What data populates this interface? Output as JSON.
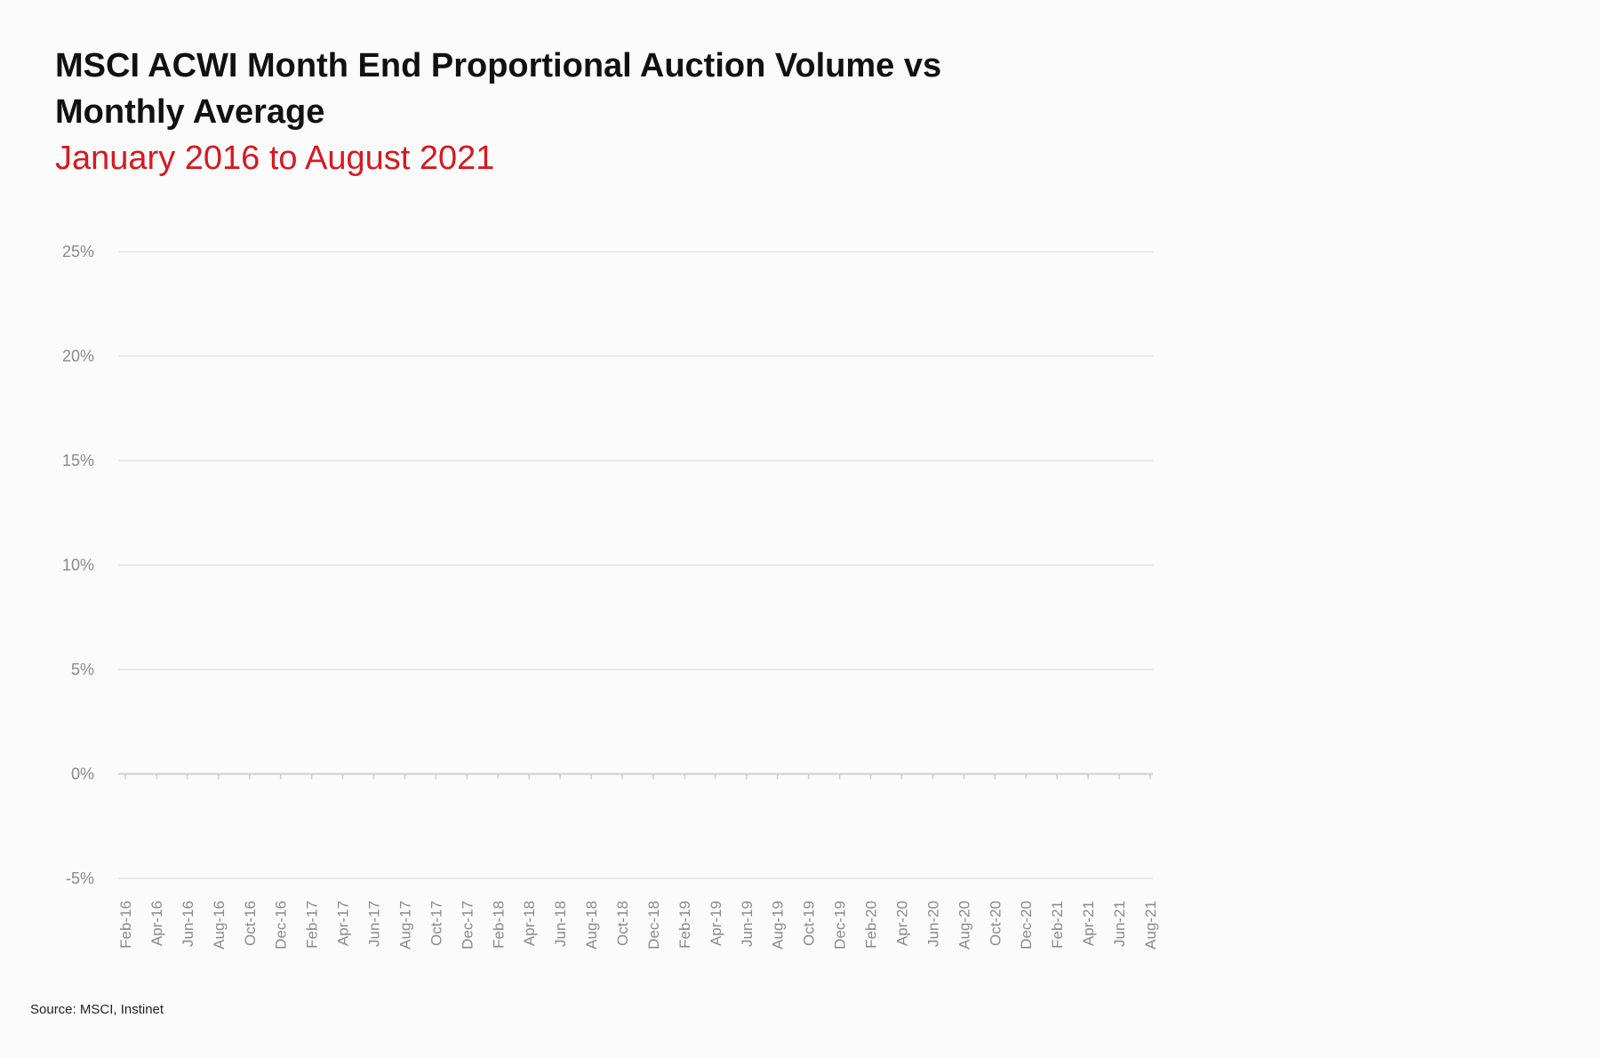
{
  "chart_data": {
    "type": "line",
    "title": "MSCI ACWI Month End Proportional Auction Volume vs Monthly Average",
    "subtitle": "January 2016 to August 2021",
    "subtitle_color": "#d71920",
    "x_tick_labels": [
      "Feb-16",
      "Apr-16",
      "Jun-16",
      "Aug-16",
      "Oct-16",
      "Dec-16",
      "Feb-17",
      "Apr-17",
      "Jun-17",
      "Aug-17",
      "Oct-17",
      "Dec-17",
      "Feb-18",
      "Apr-18",
      "Jun-18",
      "Aug-18",
      "Oct-18",
      "Dec-18",
      "Feb-19",
      "Apr-19",
      "Jun-19",
      "Aug-19",
      "Oct-19",
      "Dec-19",
      "Feb-20",
      "Apr-20",
      "Jun-20",
      "Aug-20",
      "Oct-20",
      "Dec-20",
      "Feb-21",
      "Apr-21",
      "Jun-21",
      "Aug-21"
    ],
    "y_ticks": [
      25,
      20,
      15,
      10,
      5,
      0,
      -5
    ],
    "y_tick_labels": [
      "25%",
      "20%",
      "15%",
      "10%",
      "5%",
      "0%",
      "-5%"
    ],
    "ylim": [
      -5,
      25
    ],
    "y_unit": "%",
    "grid": true,
    "series": []
  },
  "source": "Source: MSCI, Instinet"
}
